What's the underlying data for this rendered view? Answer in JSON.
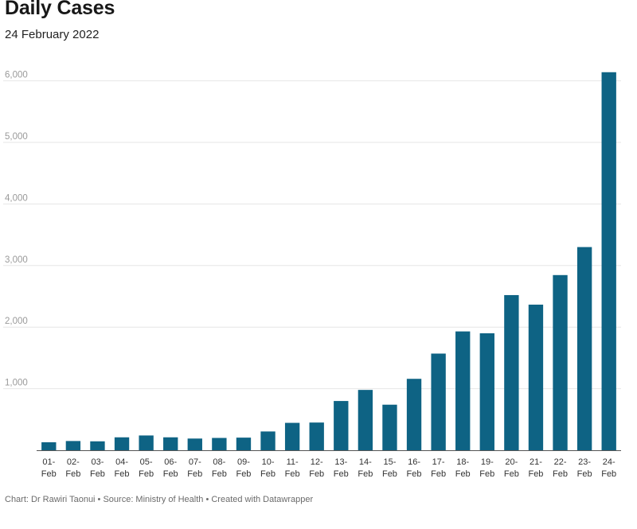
{
  "chart_data": {
    "type": "bar",
    "title": "Daily Cases",
    "subtitle": "24 February 2022",
    "footer": "Chart: Dr Rawiri Taonui • Source: Ministry of Health • Created with Datawrapper",
    "categories": [
      "01-Feb",
      "02-Feb",
      "03-Feb",
      "04-Feb",
      "05-Feb",
      "06-Feb",
      "07-Feb",
      "08-Feb",
      "09-Feb",
      "10-Feb",
      "11-Feb",
      "12-Feb",
      "13-Feb",
      "14-Feb",
      "15-Feb",
      "16-Feb",
      "17-Feb",
      "18-Feb",
      "19-Feb",
      "20-Feb",
      "21-Feb",
      "22-Feb",
      "23-Feb",
      "24-Feb"
    ],
    "values": [
      130,
      150,
      145,
      210,
      240,
      210,
      190,
      200,
      205,
      305,
      445,
      450,
      800,
      980,
      740,
      1160,
      1570,
      1930,
      1900,
      2520,
      2365,
      2845,
      3300,
      6140
    ],
    "ylim": [
      0,
      6150
    ],
    "yticks": [
      {
        "value": 1000,
        "label": "1,000"
      },
      {
        "value": 2000,
        "label": "2,000"
      },
      {
        "value": 3000,
        "label": "3,000"
      },
      {
        "value": 4000,
        "label": "4,000"
      },
      {
        "value": 5000,
        "label": "5,000"
      },
      {
        "value": 6000,
        "label": "6,000"
      }
    ],
    "grid": true,
    "bar_color": "#0e6384"
  }
}
